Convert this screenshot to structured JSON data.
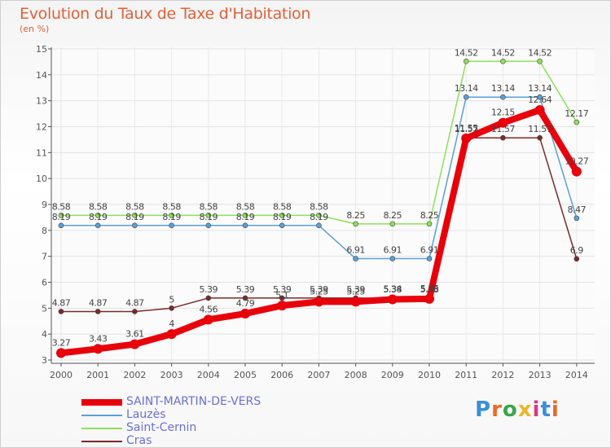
{
  "title": "Evolution du Taux de Taxe d'Habitation",
  "subtitle": "(en %)",
  "logo": {
    "letters": [
      "P",
      "r",
      "o",
      "x",
      "i",
      "t",
      "i"
    ],
    "colors": [
      "#3a8fd8",
      "#e86a2a",
      "#3aa64a",
      "#e8b82a",
      "#d83a8a",
      "#3a8fd8",
      "#e86a2a"
    ]
  },
  "chart_data": {
    "type": "line",
    "x": [
      2000,
      2001,
      2002,
      2003,
      2004,
      2005,
      2006,
      2007,
      2008,
      2009,
      2010,
      2011,
      2012,
      2013,
      2014
    ],
    "ylim": [
      3,
      15
    ],
    "yticks": [
      3,
      4,
      5,
      6,
      7,
      8,
      9,
      10,
      11,
      12,
      13,
      14,
      15
    ],
    "grid": true,
    "legend_placement": "bottom-left",
    "series": [
      {
        "name": "SAINT-MARTIN-DE-VERS",
        "color": "#e8000b",
        "width": 8,
        "marker": 6,
        "values": [
          3.27,
          3.43,
          3.61,
          4,
          4.56,
          4.79,
          5.1,
          5.25,
          5.25,
          5.34,
          5.36,
          11.55,
          12.15,
          12.64,
          10.27
        ],
        "labels": [
          "3.27",
          "3.43",
          "3.61",
          "4",
          "4.56",
          "4.79",
          "5.1",
          "5.25",
          "5.25",
          "5.34",
          "5.36",
          "11.55",
          "12.15",
          "12.64",
          "10.27"
        ]
      },
      {
        "name": "Lauzès",
        "color": "#5b9fd5",
        "width": 1.5,
        "marker": 3,
        "values": [
          8.19,
          8.19,
          8.19,
          8.19,
          8.19,
          8.19,
          8.19,
          8.19,
          6.91,
          6.91,
          6.91,
          13.14,
          13.14,
          13.14,
          8.47
        ],
        "labels": [
          "8.19",
          "8.19",
          "8.19",
          "8.19",
          "8.19",
          "8.19",
          "8.19",
          "8.19",
          "6.91",
          "6.91",
          "6.91",
          "13.14",
          "13.14",
          "13.14",
          "8.47"
        ]
      },
      {
        "name": "Saint-Cernin",
        "color": "#8ee05a",
        "width": 1.5,
        "marker": 3,
        "values": [
          8.58,
          8.58,
          8.58,
          8.58,
          8.58,
          8.58,
          8.58,
          8.58,
          8.25,
          8.25,
          8.25,
          14.52,
          14.52,
          14.52,
          12.17
        ],
        "labels": [
          "8.58",
          "8.58",
          "8.58",
          "8.58",
          "8.58",
          "8.58",
          "8.58",
          "8.58",
          "8.25",
          "8.25",
          "8.25",
          "14.52",
          "14.52",
          "14.52",
          "12.17"
        ]
      },
      {
        "name": "Cras",
        "color": "#7a2a2a",
        "width": 1.5,
        "marker": 3,
        "values": [
          4.87,
          4.87,
          4.87,
          5,
          5.39,
          5.39,
          5.39,
          5.39,
          5.39,
          5.38,
          5.38,
          11.57,
          11.57,
          11.57,
          6.9
        ],
        "labels": [
          "4.87",
          "4.87",
          "4.87",
          "5",
          "5.39",
          "5.39",
          "5.39",
          "5.39",
          "5.39",
          "5.38",
          "5.38",
          "11.57",
          "11.57",
          "11.57",
          "6.9"
        ]
      }
    ]
  }
}
